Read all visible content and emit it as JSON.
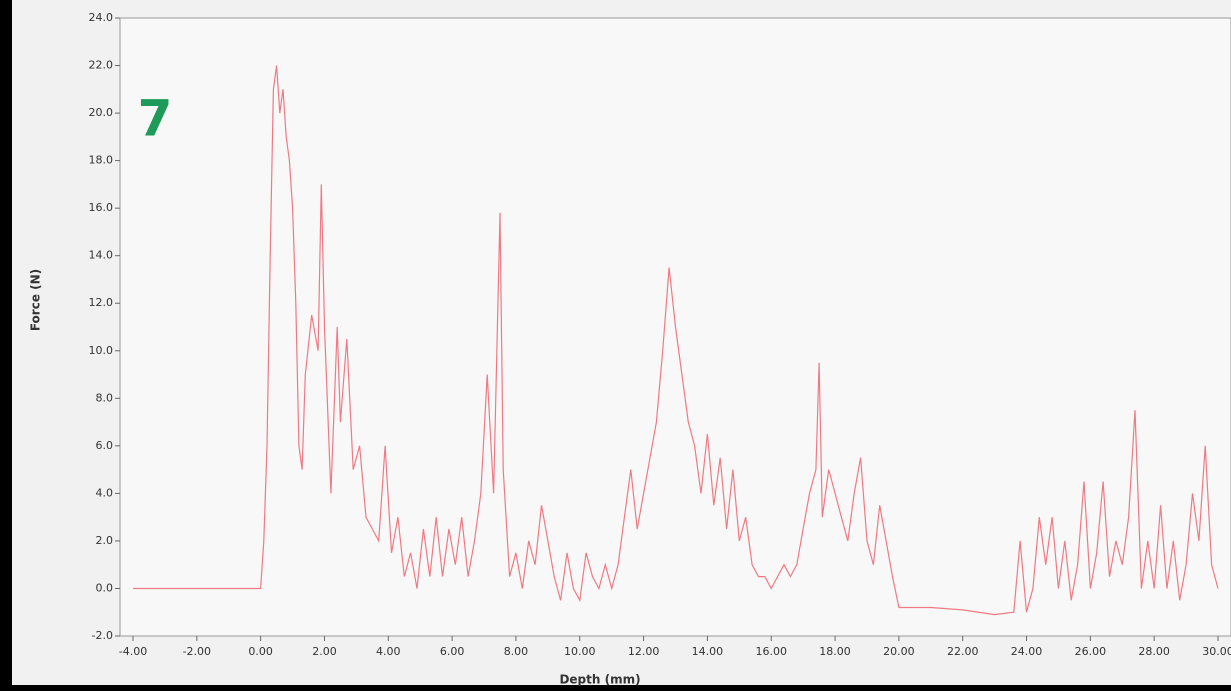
{
  "chart_data": {
    "type": "line",
    "x_label": "Depth (mm)",
    "y_label": "Force (N)",
    "annotation": "7",
    "color": "#ee7a84",
    "annotation_color": "#1e9a5a",
    "xlim": [
      -4,
      30
    ],
    "ylim": [
      -2,
      24
    ],
    "xticks": [
      {
        "value": -4,
        "label": "-4.00"
      },
      {
        "value": -2,
        "label": "-2.00"
      },
      {
        "value": 0,
        "label": "0.00"
      },
      {
        "value": 2,
        "label": "2.00"
      },
      {
        "value": 4,
        "label": "4.00"
      },
      {
        "value": 6,
        "label": "6.00"
      },
      {
        "value": 8,
        "label": "8.00"
      },
      {
        "value": 10,
        "label": "10.00"
      },
      {
        "value": 12,
        "label": "12.00"
      },
      {
        "value": 14,
        "label": "14.00"
      },
      {
        "value": 16,
        "label": "16.00"
      },
      {
        "value": 18,
        "label": "18.00"
      },
      {
        "value": 20,
        "label": "20.00"
      },
      {
        "value": 22,
        "label": "22.00"
      },
      {
        "value": 24,
        "label": "24.00"
      },
      {
        "value": 26,
        "label": "26.00"
      },
      {
        "value": 28,
        "label": "28.00"
      },
      {
        "value": 30,
        "label": "30.00"
      }
    ],
    "yticks": [
      {
        "value": -2,
        "label": "-2.0"
      },
      {
        "value": 0,
        "label": "0.0"
      },
      {
        "value": 2,
        "label": "2.0"
      },
      {
        "value": 4,
        "label": "4.0"
      },
      {
        "value": 6,
        "label": "6.0"
      },
      {
        "value": 8,
        "label": "8.0"
      },
      {
        "value": 10,
        "label": "10.0"
      },
      {
        "value": 12,
        "label": "12.0"
      },
      {
        "value": 14,
        "label": "14.0"
      },
      {
        "value": 16,
        "label": "16.0"
      },
      {
        "value": 18,
        "label": "18.0"
      },
      {
        "value": 20,
        "label": "20.0"
      },
      {
        "value": 22,
        "label": "22.0"
      },
      {
        "value": 24,
        "label": "24.0"
      }
    ],
    "x": [
      -4,
      -3,
      -2,
      -1,
      0,
      0.1,
      0.2,
      0.3,
      0.4,
      0.5,
      0.6,
      0.7,
      0.8,
      0.9,
      1.0,
      1.1,
      1.2,
      1.3,
      1.4,
      1.6,
      1.8,
      1.9,
      2.0,
      2.2,
      2.4,
      2.5,
      2.7,
      2.9,
      3.1,
      3.3,
      3.5,
      3.7,
      3.9,
      4.1,
      4.3,
      4.5,
      4.7,
      4.9,
      5.1,
      5.3,
      5.5,
      5.7,
      5.9,
      6.1,
      6.3,
      6.5,
      6.7,
      6.9,
      7.1,
      7.3,
      7.5,
      7.6,
      7.8,
      8.0,
      8.2,
      8.4,
      8.6,
      8.8,
      9.0,
      9.2,
      9.4,
      9.6,
      9.8,
      10.0,
      10.2,
      10.4,
      10.6,
      10.8,
      11.0,
      11.2,
      11.4,
      11.6,
      11.8,
      12.0,
      12.2,
      12.4,
      12.6,
      12.8,
      13.0,
      13.2,
      13.4,
      13.6,
      13.8,
      14.0,
      14.2,
      14.4,
      14.6,
      14.8,
      15.0,
      15.2,
      15.4,
      15.6,
      15.8,
      16.0,
      16.2,
      16.4,
      16.6,
      16.8,
      17.0,
      17.2,
      17.4,
      17.5,
      17.6,
      17.8,
      18.0,
      18.2,
      18.4,
      18.6,
      18.8,
      19.0,
      19.2,
      19.4,
      19.6,
      19.8,
      20.0,
      21.0,
      22.0,
      23.0,
      23.6,
      23.8,
      24.0,
      24.2,
      24.4,
      24.6,
      24.8,
      25.0,
      25.2,
      25.4,
      25.6,
      25.8,
      26.0,
      26.2,
      26.4,
      26.6,
      26.8,
      27.0,
      27.2,
      27.4,
      27.6,
      27.8,
      28.0,
      28.2,
      28.4,
      28.6,
      28.8,
      29.0,
      29.2,
      29.4,
      29.6,
      29.8,
      30.0
    ],
    "values": [
      0,
      0,
      0,
      0,
      0,
      2,
      6,
      14,
      21,
      22,
      20,
      21,
      19,
      18,
      16,
      12,
      6,
      5,
      9,
      11.5,
      10,
      17,
      11,
      4,
      11,
      7,
      10.5,
      5,
      6,
      3,
      2.5,
      2,
      6,
      1.5,
      3,
      0.5,
      1.5,
      0,
      2.5,
      0.5,
      3,
      0.5,
      2.5,
      1,
      3,
      0.5,
      2,
      4,
      9,
      4,
      15.8,
      5,
      0.5,
      1.5,
      0,
      2,
      1,
      3.5,
      2,
      0.5,
      -0.5,
      1.5,
      0,
      -0.5,
      1.5,
      0.5,
      0,
      1,
      0,
      1,
      3,
      5,
      2.5,
      4,
      5.5,
      7,
      10,
      13.5,
      11,
      9,
      7,
      6,
      4,
      6.5,
      3.5,
      5.5,
      2.5,
      5,
      2,
      3,
      1,
      0.5,
      0.5,
      0,
      0.5,
      1,
      0.5,
      1,
      2.5,
      4,
      5,
      9.5,
      3,
      5,
      4,
      3,
      2,
      4,
      5.5,
      2,
      1,
      3.5,
      2,
      0.5,
      -0.8,
      -0.8,
      -0.9,
      -1.1,
      -1,
      2,
      -1,
      0,
      3,
      1,
      3,
      0,
      2,
      -0.5,
      1,
      4.5,
      0,
      1.5,
      4.5,
      0.5,
      2,
      1,
      3,
      7.5,
      0,
      2,
      0,
      3.5,
      0,
      2,
      -0.5,
      1,
      4,
      2,
      6,
      1,
      0
    ]
  }
}
